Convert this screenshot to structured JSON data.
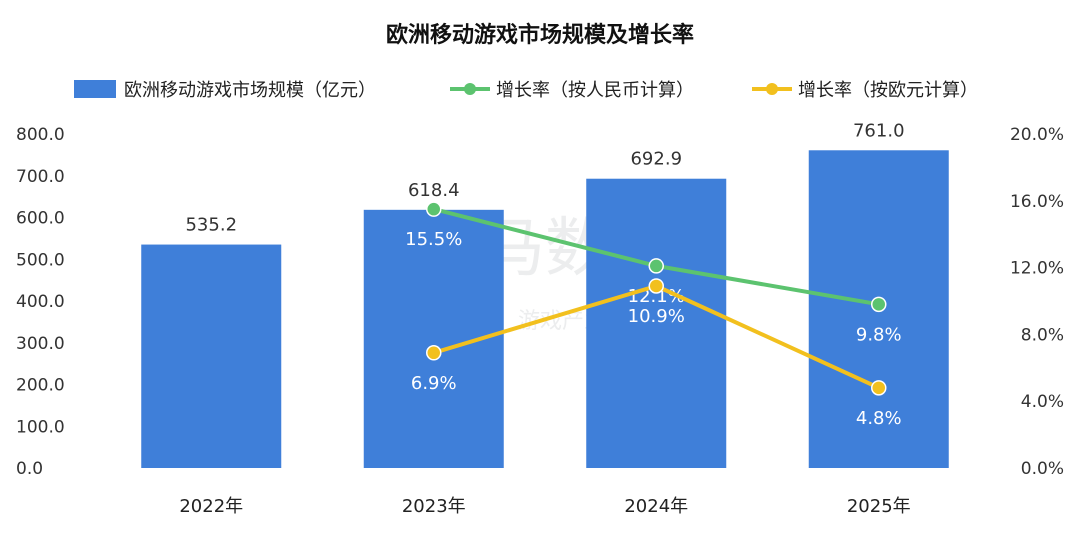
{
  "chart_data": {
    "type": "bar",
    "title": "欧洲移动游戏市场规模及增长率",
    "categories": [
      "2022年",
      "2023年",
      "2024年",
      "2025年"
    ],
    "series": [
      {
        "name": "欧洲移动游戏市场规模（亿元）",
        "kind": "bar",
        "axis": "left",
        "values": [
          535.2,
          618.4,
          692.9,
          761.0
        ],
        "labels": [
          "535.2",
          "618.4",
          "692.9",
          "761.0"
        ]
      },
      {
        "name": "增长率（按人民币计算）",
        "kind": "line",
        "axis": "right",
        "values": [
          null,
          15.5,
          12.1,
          9.8
        ],
        "labels": [
          "",
          "15.5%",
          "12.1%",
          "9.8%"
        ]
      },
      {
        "name": "增长率（按欧元计算）",
        "kind": "line",
        "axis": "right",
        "values": [
          null,
          6.9,
          10.9,
          4.8
        ],
        "labels": [
          "",
          "6.9%",
          "10.9%",
          "4.8%"
        ]
      }
    ],
    "y_left": {
      "range": [
        0,
        800
      ],
      "ticks": [
        "0.0",
        "100.0",
        "200.0",
        "300.0",
        "400.0",
        "500.0",
        "600.0",
        "700.0",
        "800.0"
      ]
    },
    "y_right": {
      "range": [
        0,
        20
      ],
      "ticks": [
        "0.0%",
        "4.0%",
        "8.0%",
        "12.0%",
        "16.0%",
        "20.0%"
      ]
    },
    "grid": false,
    "legend_position": "top",
    "colors": {
      "bar": "#3f7fd9",
      "rmb_line": "#5cc36f",
      "eur_line": "#f2c01e"
    },
    "watermark": {
      "main": "伽马数据",
      "sub": "微信号：游戏产业报告"
    }
  }
}
